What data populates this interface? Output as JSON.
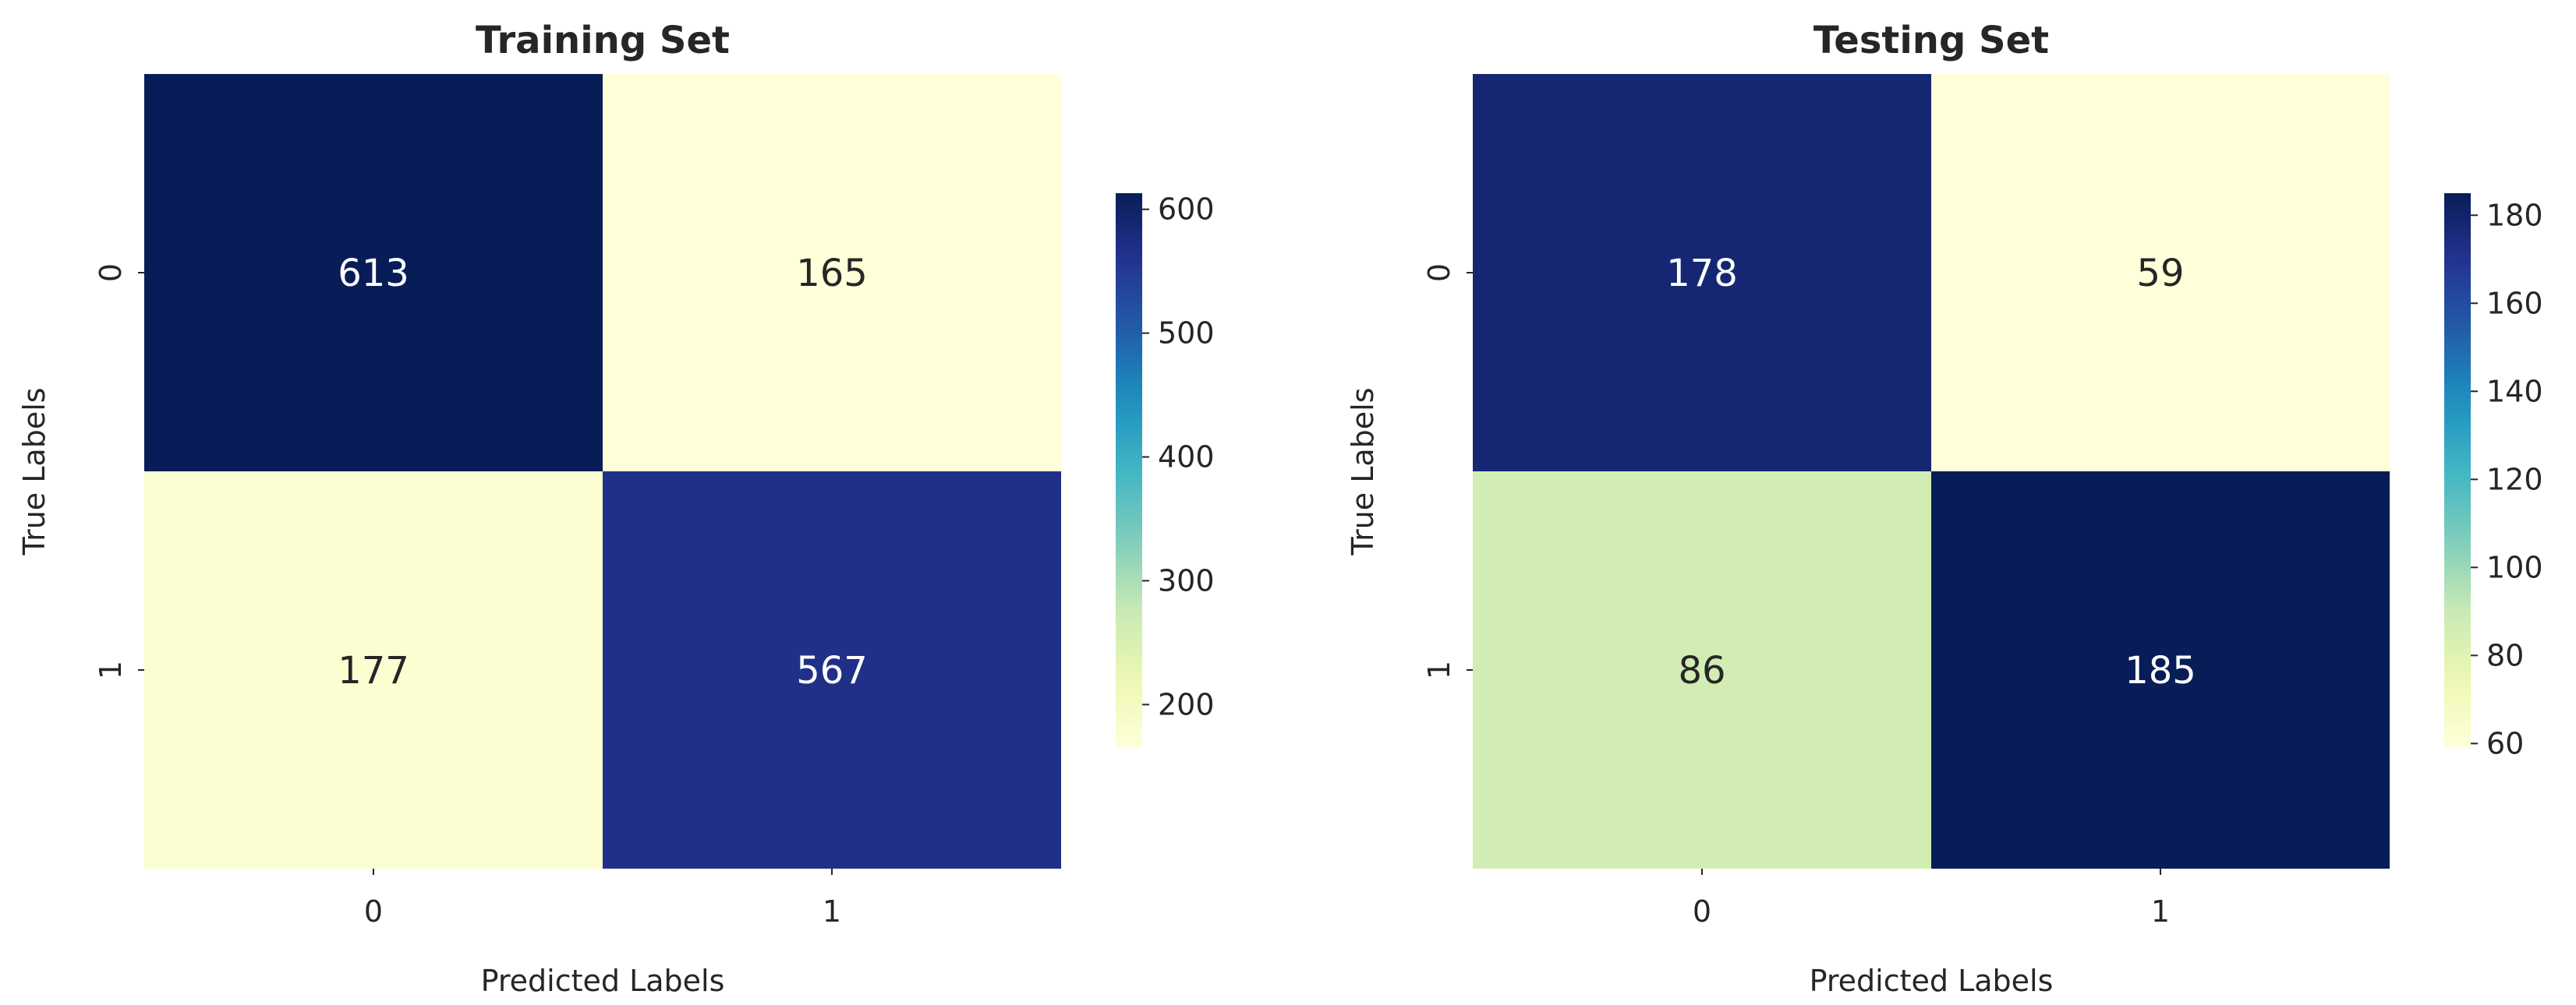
{
  "colors": {
    "colormap": "YlGnBu",
    "text_on_dark": "#ffffff",
    "text_on_light": "#262626",
    "tick_color": "#262626"
  },
  "chart_data": [
    {
      "type": "heatmap",
      "title": "Training Set",
      "xlabel": "Predicted Labels",
      "ylabel": "True Labels",
      "x_categories": [
        "0",
        "1"
      ],
      "y_categories": [
        "0",
        "1"
      ],
      "values": [
        [
          613,
          165
        ],
        [
          177,
          567
        ]
      ],
      "colorbar": {
        "min": 165,
        "max": 613,
        "ticks": [
          200,
          300,
          400,
          500,
          600
        ]
      },
      "grid": false
    },
    {
      "type": "heatmap",
      "title": "Testing Set",
      "xlabel": "Predicted Labels",
      "ylabel": "True Labels",
      "x_categories": [
        "0",
        "1"
      ],
      "y_categories": [
        "0",
        "1"
      ],
      "values": [
        [
          178,
          59
        ],
        [
          86,
          185
        ]
      ],
      "colorbar": {
        "min": 59,
        "max": 185,
        "ticks": [
          60,
          80,
          100,
          120,
          140,
          160,
          180
        ]
      },
      "grid": false
    }
  ]
}
